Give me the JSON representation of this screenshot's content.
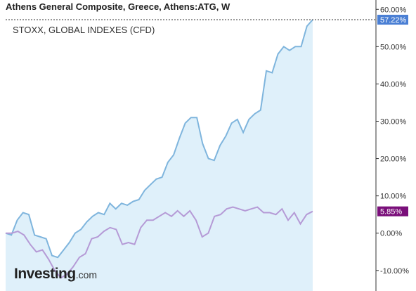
{
  "header": {
    "title": "Athens General Composite, Greece, Athens:ATG, W"
  },
  "legend": {
    "overlay_label": "STOXX, GLOBAL INDEXES (CFD)"
  },
  "logo": {
    "main": "Investing",
    "suffix": ".com"
  },
  "colors": {
    "main_line": "#7fb5dd",
    "main_fill": "#dff0fa",
    "overlay_line": "#b59ad6",
    "main_badge": "#4a7fd4",
    "overlay_badge": "#7a0f7a",
    "axis": "#333333"
  },
  "chart_data": {
    "type": "area",
    "ylim": [
      -15.5,
      62.5
    ],
    "y_ticks": [
      -10,
      0,
      10,
      20,
      30,
      40,
      50,
      60
    ],
    "y_tick_labels": [
      "-10.00%",
      "0.00%",
      "10.00%",
      "20.00%",
      "30.00%",
      "40.00%",
      "50.00%",
      "60.00%"
    ],
    "last_values": {
      "main_label": "57.22%",
      "overlay_label": "5.85%"
    },
    "series": [
      {
        "name": "Athens General Composite",
        "values": [
          0,
          -0.5,
          3.5,
          5.5,
          5,
          -0.5,
          -1,
          -1.5,
          -6,
          -6.5,
          -4.5,
          -2.5,
          0,
          1,
          3,
          4.5,
          5.5,
          5,
          8,
          6.5,
          8,
          7.5,
          8.5,
          9,
          11.5,
          13,
          14.5,
          15,
          19,
          21,
          25.5,
          29.5,
          31,
          31,
          24,
          20,
          19.5,
          23.5,
          26,
          29.5,
          30.5,
          27,
          30.5,
          32,
          33,
          43.5,
          43,
          48,
          50,
          49,
          50,
          50,
          55.5,
          57.22
        ]
      },
      {
        "name": "STOXX, GLOBAL INDEXES (CFD)",
        "values": [
          0,
          0,
          0.5,
          -0.5,
          -3,
          -5,
          -4.5,
          -7,
          -10,
          -12,
          -11,
          -9,
          -6.5,
          -5.5,
          -1.5,
          -1,
          0.5,
          1.5,
          1,
          -3,
          -2.5,
          -3,
          1.5,
          3.5,
          3.5,
          4.5,
          5.5,
          4.5,
          6,
          4.5,
          6,
          3.5,
          -1,
          0,
          4.5,
          5,
          6.5,
          7,
          6.5,
          6,
          6.5,
          7,
          5.5,
          5.5,
          5,
          6.5,
          3.5,
          5.5,
          2.5,
          5,
          5.85
        ]
      }
    ]
  }
}
